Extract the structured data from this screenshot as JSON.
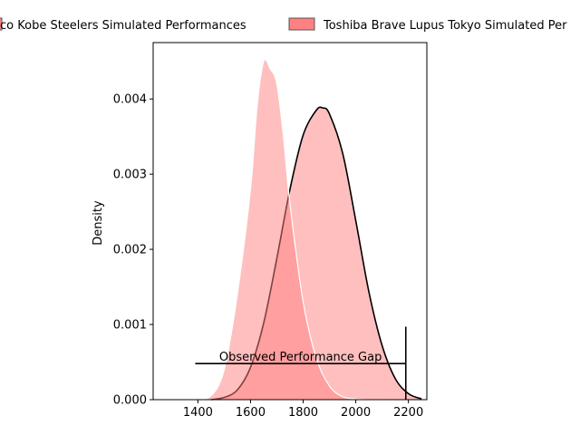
{
  "chart_data": {
    "type": "area",
    "title": "",
    "xlabel": "",
    "ylabel": "Density",
    "xlim": [
      1230,
      2270
    ],
    "ylim": [
      0,
      0.00475
    ],
    "x_ticks": [
      1400,
      1600,
      1800,
      2000,
      2200
    ],
    "y_ticks": [
      0.0,
      0.001,
      0.002,
      0.003,
      0.004
    ],
    "y_tick_labels": [
      "0.000",
      "0.001",
      "0.002",
      "0.003",
      "0.004"
    ],
    "grid": false,
    "legend_placement": "top-center",
    "series": [
      {
        "name": "Kubota Spears / Kobelco Kobe Steelers Simulated Performances",
        "legend_label": "co Kobe Steelers Simulated Performances",
        "color": "#000000",
        "fill": "#ff8080",
        "x": [
          1450,
          1500,
          1550,
          1600,
          1650,
          1700,
          1750,
          1800,
          1850,
          1875,
          1900,
          1950,
          2000,
          2050,
          2100,
          2150,
          2200,
          2250
        ],
        "y": [
          0.0,
          3e-05,
          0.00013,
          0.00043,
          0.00102,
          0.00188,
          0.0028,
          0.00352,
          0.00385,
          0.00388,
          0.0038,
          0.00328,
          0.00238,
          0.00143,
          0.00072,
          0.00028,
          8e-05,
          1e-05
        ]
      },
      {
        "name": "Toshiba Brave Lupus Tokyo Simulated Performances",
        "legend_label": "Toshiba Brave Lupus Tokyo Simulated Per",
        "color": "#ffffff",
        "fill": "#ff8080",
        "x": [
          1390,
          1450,
          1500,
          1550,
          1600,
          1625,
          1650,
          1675,
          1700,
          1725,
          1750,
          1800,
          1850,
          1900,
          1950,
          2000,
          2050,
          2100
        ],
        "y": [
          0.0,
          5e-05,
          0.0004,
          0.0014,
          0.0028,
          0.0039,
          0.0045,
          0.0044,
          0.0042,
          0.0035,
          0.0026,
          0.0013,
          0.00055,
          0.00018,
          4e-05,
          1e-05,
          0.0,
          0.0
        ]
      }
    ],
    "annotations": [
      {
        "text": "Observed Performance Gap",
        "type": "horizontal-line",
        "x_start": 1390,
        "x_end": 2190,
        "y": 0.00048
      },
      {
        "type": "vertical-line",
        "x": 2190,
        "y_start": 0,
        "y_end": 0.00097
      }
    ]
  }
}
